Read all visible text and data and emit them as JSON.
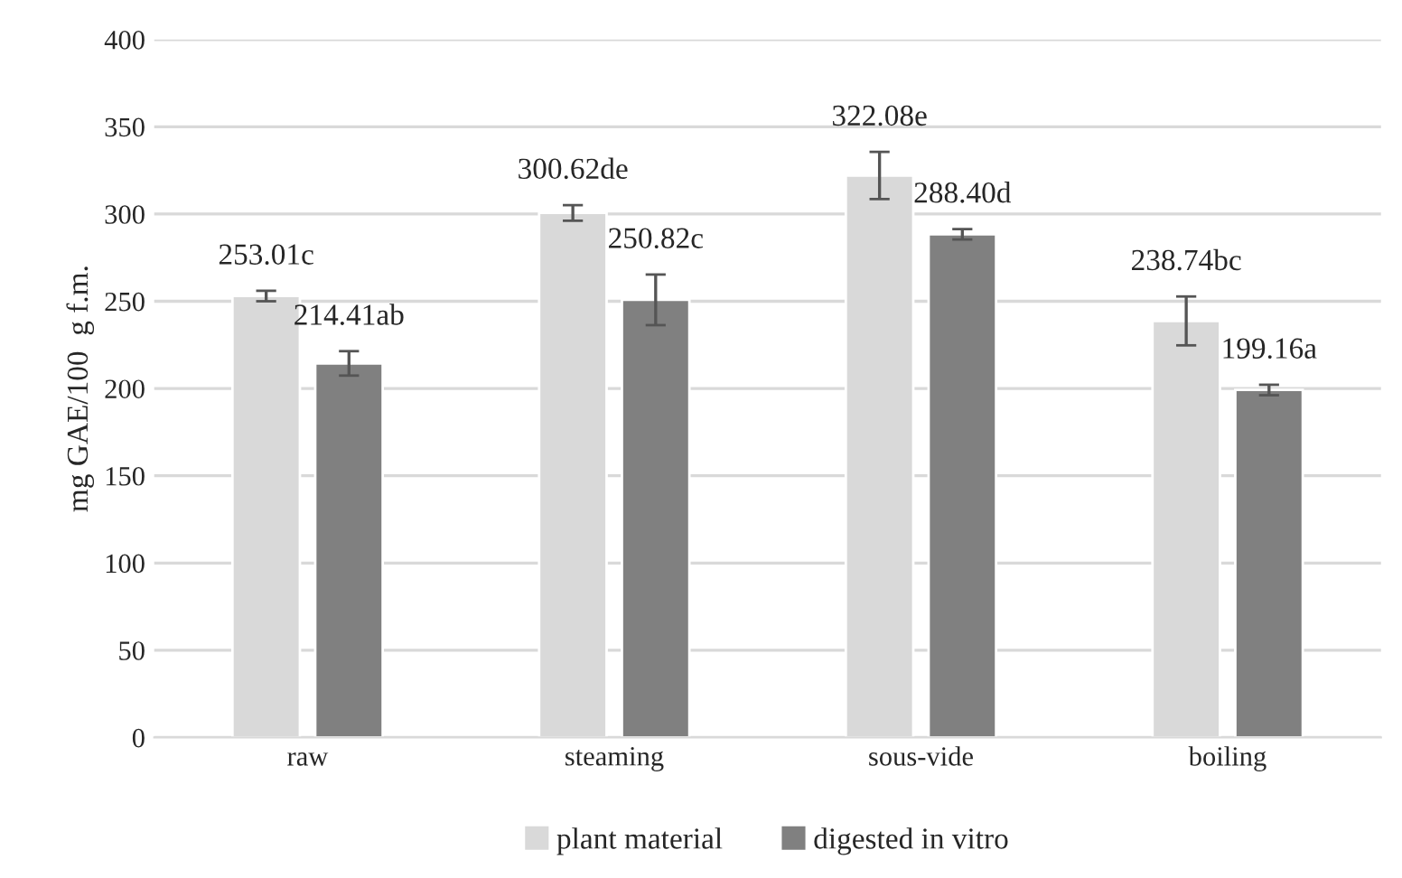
{
  "chart_data": {
    "type": "bar",
    "ylabel": "mg GAE/100  g f.m.",
    "categories": [
      "raw",
      "steaming",
      "sous-vide",
      "boiling"
    ],
    "series": [
      {
        "name": "plant material",
        "color": "#d9d9d9",
        "values": [
          253.01,
          300.62,
          322.08,
          238.74
        ],
        "errors": [
          3,
          4.5,
          13.5,
          14
        ],
        "value_labels": [
          "253.01c",
          "300.62de",
          "322.08e",
          "238.74bc"
        ]
      },
      {
        "name": "digested in vitro",
        "color": "#808080",
        "values": [
          214.41,
          250.82,
          288.4,
          199.16
        ],
        "errors": [
          7,
          14.5,
          3,
          3
        ],
        "value_labels": [
          "214.41ab",
          "250.82c",
          "288.40d",
          "199.16a"
        ]
      }
    ],
    "ylim": [
      0,
      400
    ],
    "yticks": [
      0,
      50,
      100,
      150,
      200,
      250,
      300,
      350,
      400
    ],
    "grid": "y",
    "legend": "bottom"
  }
}
